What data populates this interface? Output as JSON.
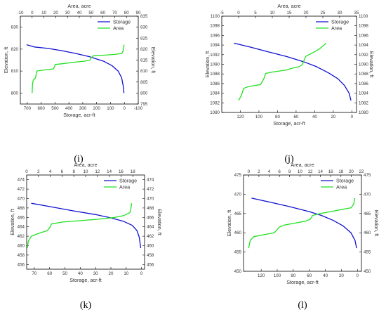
{
  "colors": {
    "storage": "#1010d0",
    "area": "#22e022",
    "frame": "#000000"
  },
  "chart_data": [
    {
      "panel_label": "(i)",
      "type": "line",
      "legend_position": "top-right",
      "grid": false,
      "left_axis_label": "Elevation, ft",
      "right_axis_label": "Elevation, ft",
      "top_axis_label": "Area, acre",
      "bottom_axis_label": "Storage, acr-ft",
      "left_lim": [
        795,
        835
      ],
      "left_ticks": [
        800,
        810,
        820,
        830
      ],
      "right_lim": [
        795,
        835
      ],
      "right_ticks": [
        795,
        800,
        805,
        810,
        815,
        820,
        825,
        830,
        835
      ],
      "top_lim": [
        -10,
        90
      ],
      "top_ticks": [
        -10,
        0,
        10,
        20,
        30,
        40,
        50,
        60,
        70,
        80,
        90
      ],
      "bottom_lim": [
        750,
        -100
      ],
      "bottom_ticks": [
        700,
        600,
        500,
        400,
        300,
        200,
        100,
        0,
        -100
      ],
      "series": [
        {
          "name": "Storage",
          "axis": "bottom",
          "values": [
            [
              705,
              822
            ],
            [
              650,
              821
            ],
            [
              550,
              820.3
            ],
            [
              450,
              819.3
            ],
            [
              350,
              818
            ],
            [
              250,
              816.5
            ],
            [
              150,
              814.5
            ],
            [
              90,
              812.5
            ],
            [
              45,
              810
            ],
            [
              20,
              807
            ],
            [
              8,
              803
            ],
            [
              3,
              800
            ]
          ]
        },
        {
          "name": "Area",
          "axis": "top",
          "values": [
            [
              0,
              800
            ],
            [
              0.3,
              804
            ],
            [
              1,
              806
            ],
            [
              3,
              807
            ],
            [
              3.5,
              809
            ],
            [
              4,
              810
            ],
            [
              10,
              810.5
            ],
            [
              18,
              811
            ],
            [
              19,
              812
            ],
            [
              19.5,
              813
            ],
            [
              28,
              813.5
            ],
            [
              35,
              814
            ],
            [
              44,
              814.5
            ],
            [
              49,
              815
            ],
            [
              50,
              816
            ],
            [
              52,
              817
            ],
            [
              60,
              817.2
            ],
            [
              70,
              817.6
            ],
            [
              76,
              818
            ],
            [
              77,
              819
            ],
            [
              77.3,
              820
            ],
            [
              78,
              822
            ]
          ]
        }
      ]
    },
    {
      "panel_label": "(j)",
      "type": "line",
      "legend_position": "top-right",
      "grid": false,
      "left_axis_label": "Elevation, ft",
      "right_axis_label": "Elevation, ft",
      "top_axis_label": "Area, acre",
      "bottom_axis_label": "Storage, acr-ft",
      "left_lim": [
        1080,
        1100
      ],
      "left_ticks": [
        1080,
        1082,
        1084,
        1086,
        1088,
        1090,
        1092,
        1094,
        1096,
        1098,
        1100
      ],
      "right_lim": [
        1080,
        1100
      ],
      "right_ticks": [
        1080,
        1082,
        1084,
        1086,
        1088,
        1090,
        1092,
        1094,
        1096,
        1098,
        1100
      ],
      "top_lim": [
        -5,
        35
      ],
      "top_ticks": [
        -5,
        0,
        5,
        10,
        15,
        20,
        25,
        30,
        35
      ],
      "bottom_lim": [
        140,
        -5
      ],
      "bottom_ticks": [
        120,
        100,
        80,
        60,
        40,
        20,
        0
      ],
      "series": [
        {
          "name": "Storage",
          "axis": "bottom",
          "values": [
            [
              127,
              1094.4
            ],
            [
              110,
              1093.6
            ],
            [
              90,
              1092.6
            ],
            [
              70,
              1091.6
            ],
            [
              50,
              1090.4
            ],
            [
              38,
              1089.5
            ],
            [
              25,
              1088.2
            ],
            [
              15,
              1087
            ],
            [
              8,
              1085.6
            ],
            [
              3,
              1084
            ],
            [
              1,
              1082.5
            ]
          ]
        },
        {
          "name": "Area",
          "axis": "top",
          "values": [
            [
              0,
              1082.5
            ],
            [
              0.8,
              1083.5
            ],
            [
              1.5,
              1085
            ],
            [
              3,
              1085.4
            ],
            [
              5,
              1085.6
            ],
            [
              6.5,
              1085.8
            ],
            [
              7.5,
              1087
            ],
            [
              8,
              1088.1
            ],
            [
              10,
              1088.4
            ],
            [
              12,
              1088.6
            ],
            [
              14,
              1088.8
            ],
            [
              16,
              1089.2
            ],
            [
              18,
              1089.5
            ],
            [
              19,
              1090
            ],
            [
              19.5,
              1091
            ],
            [
              20,
              1091.7
            ],
            [
              22,
              1092.4
            ],
            [
              24,
              1093.2
            ],
            [
              26,
              1094.4
            ]
          ]
        }
      ]
    },
    {
      "panel_label": "(k)",
      "type": "line",
      "legend_position": "top-right",
      "grid": false,
      "left_axis_label": "Elevation, ft",
      "right_axis_label": "Elevation, ft",
      "top_axis_label": "Area, acre",
      "bottom_axis_label": "Storage, acr-ft",
      "left_lim": [
        455,
        475
      ],
      "left_ticks": [
        456,
        458,
        460,
        462,
        464,
        466,
        468,
        470,
        472,
        474
      ],
      "right_lim": [
        455,
        475
      ],
      "right_ticks": [
        456,
        458,
        460,
        462,
        464,
        466,
        468,
        470,
        472,
        474
      ],
      "top_lim": [
        0,
        20
      ],
      "top_ticks": [
        0,
        2,
        4,
        6,
        8,
        10,
        12,
        14,
        16,
        18
      ],
      "bottom_lim": [
        75,
        -2
      ],
      "bottom_ticks": [
        70,
        60,
        50,
        40,
        30,
        20,
        10,
        0
      ],
      "series": [
        {
          "name": "Storage",
          "axis": "bottom",
          "values": [
            [
              72,
              469
            ],
            [
              60,
              468.3
            ],
            [
              45,
              467.4
            ],
            [
              30,
              466.6
            ],
            [
              20,
              465.9
            ],
            [
              12,
              465.2
            ],
            [
              6,
              464.3
            ],
            [
              3,
              463.2
            ],
            [
              1.5,
              461.8
            ],
            [
              0.5,
              459.5
            ]
          ]
        },
        {
          "name": "Area",
          "axis": "top",
          "values": [
            [
              0.1,
              459.5
            ],
            [
              0.3,
              461
            ],
            [
              0.8,
              462
            ],
            [
              2,
              462.6
            ],
            [
              3.5,
              463.2
            ],
            [
              4,
              464
            ],
            [
              4.2,
              464.6
            ],
            [
              6,
              465
            ],
            [
              9,
              465.3
            ],
            [
              12,
              465.6
            ],
            [
              15,
              466
            ],
            [
              16.5,
              466.4
            ],
            [
              17.5,
              467
            ],
            [
              17.7,
              468
            ],
            [
              17.8,
              469
            ]
          ]
        }
      ]
    },
    {
      "panel_label": "(l)",
      "type": "line",
      "legend_position": "top-right",
      "grid": false,
      "left_axis_label": "Elevation, ft",
      "right_axis_label": "Elevation, ft",
      "top_axis_label": "Area, acre",
      "bottom_axis_label": "Storage, acr-ft",
      "left_lim": [
        450,
        475
      ],
      "left_ticks": [
        450,
        455,
        460,
        465,
        470,
        475
      ],
      "right_lim": [
        450,
        475
      ],
      "right_ticks": [
        450,
        455,
        460,
        465,
        470,
        475
      ],
      "top_lim": [
        -1,
        22
      ],
      "top_ticks": [
        0,
        2,
        4,
        6,
        8,
        10,
        12,
        14,
        16,
        18,
        20,
        22
      ],
      "bottom_lim": [
        142,
        -5
      ],
      "bottom_ticks": [
        120,
        100,
        80,
        60,
        40,
        20,
        0
      ],
      "series": [
        {
          "name": "Storage",
          "axis": "bottom",
          "values": [
            [
              132,
              469
            ],
            [
              110,
              468
            ],
            [
              85,
              466.8
            ],
            [
              60,
              465.5
            ],
            [
              45,
              464.5
            ],
            [
              30,
              463.2
            ],
            [
              18,
              461.8
            ],
            [
              8,
              460
            ],
            [
              3,
              458
            ],
            [
              1,
              456
            ]
          ]
        },
        {
          "name": "Area",
          "axis": "top",
          "values": [
            [
              0,
              456
            ],
            [
              0.3,
              458
            ],
            [
              1,
              459
            ],
            [
              3,
              459.5
            ],
            [
              5,
              460
            ],
            [
              6,
              461.5
            ],
            [
              7,
              462
            ],
            [
              9,
              462.5
            ],
            [
              11,
              463
            ],
            [
              12,
              463.5
            ],
            [
              12.5,
              464.5
            ],
            [
              14,
              465
            ],
            [
              16,
              465.5
            ],
            [
              18,
              466
            ],
            [
              20,
              466.5
            ],
            [
              20.5,
              467.5
            ],
            [
              20.7,
              469
            ]
          ]
        }
      ]
    }
  ]
}
